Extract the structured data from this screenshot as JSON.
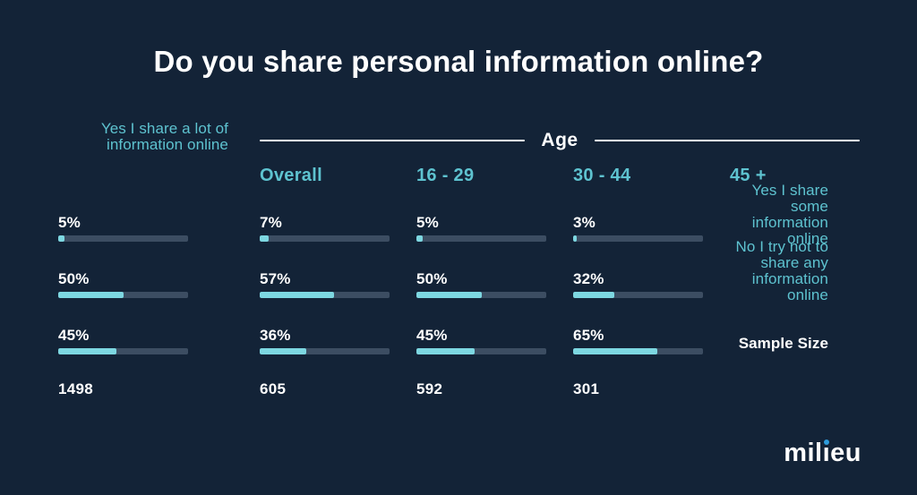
{
  "title": "Do you share personal information online?",
  "age_header": "Age",
  "columns": [
    {
      "label": "Overall"
    },
    {
      "label": "16 - 29"
    },
    {
      "label": "30 - 44"
    },
    {
      "label": "45 +"
    }
  ],
  "rows": [
    {
      "label_line1": "Yes I share a lot of",
      "label_line2": "information online",
      "values": [
        "5%",
        "7%",
        "5%",
        "3%"
      ],
      "percents": [
        5,
        7,
        5,
        3
      ]
    },
    {
      "label_line1": "Yes I share some",
      "label_line2": "information online",
      "values": [
        "50%",
        "57%",
        "50%",
        "32%"
      ],
      "percents": [
        50,
        57,
        50,
        32
      ]
    },
    {
      "label_line1": "No I try not to share any",
      "label_line2": "information online",
      "values": [
        "45%",
        "36%",
        "45%",
        "65%"
      ],
      "percents": [
        45,
        36,
        45,
        65
      ]
    }
  ],
  "sample_size": {
    "label": "Sample Size",
    "values": [
      "1498",
      "605",
      "592",
      "301"
    ]
  },
  "logo": {
    "pre": "mil",
    "i": "ı",
    "post": "eu"
  },
  "colors": {
    "background": "#132337",
    "teal_text": "#5ec3d0",
    "bar_fill": "#7dd7e1",
    "bar_track": "#3c4d62",
    "text_white": "#ffffff",
    "logo_dot_blue": "#2d9cdb"
  },
  "chart_data": {
    "type": "bar",
    "title": "Do you share personal information online?",
    "group_header": "Age",
    "categories": [
      "Overall",
      "16 - 29",
      "30 - 44",
      "45 +"
    ],
    "series": [
      {
        "name": "Yes I share a lot of information online",
        "values": [
          5,
          7,
          5,
          3
        ]
      },
      {
        "name": "Yes I share some information online",
        "values": [
          50,
          57,
          50,
          32
        ]
      },
      {
        "name": "No I try not to share any information online",
        "values": [
          45,
          36,
          45,
          65
        ]
      }
    ],
    "unit": "%",
    "bar_scale": [
      0,
      100
    ],
    "sample_size": {
      "name": "Sample Size",
      "values": [
        1498,
        605,
        592,
        301
      ]
    },
    "legend_position": "none",
    "grid": false
  }
}
